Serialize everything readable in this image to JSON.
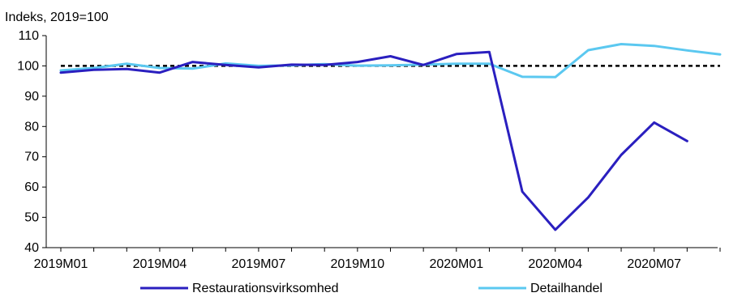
{
  "chart_data": {
    "type": "line",
    "ylabel": "Indeks, 2019=100",
    "ylim": [
      40,
      110
    ],
    "yticks": [
      40,
      50,
      60,
      70,
      80,
      90,
      100,
      110
    ],
    "x": [
      "2019M01",
      "2019M02",
      "2019M03",
      "2019M04",
      "2019M05",
      "2019M06",
      "2019M07",
      "2019M08",
      "2019M09",
      "2019M10",
      "2019M11",
      "2019M12",
      "2020M01",
      "2020M02",
      "2020M03",
      "2020M04",
      "2020M05",
      "2020M06",
      "2020M07",
      "2020M08",
      "2020M09"
    ],
    "xtick_labels": [
      "2019M01",
      "2019M04",
      "2019M07",
      "2019M10",
      "2020M01",
      "2020M04",
      "2020M07"
    ],
    "reference_line": {
      "value": 100,
      "style": "dashed",
      "color": "#000000"
    },
    "series": [
      {
        "name": "Restaurationsvirksomhed",
        "color": "#2a1fbf",
        "values": [
          97.8,
          98.7,
          99.0,
          97.8,
          101.3,
          100.3,
          99.5,
          100.4,
          100.3,
          101.3,
          103.2,
          100.3,
          103.9,
          104.6,
          58.5,
          45.9,
          56.6,
          70.6,
          81.3,
          75.2,
          null
        ]
      },
      {
        "name": "Detailhandel",
        "color": "#5bc8f0",
        "values": [
          98.5,
          99.3,
          100.7,
          99.3,
          99.1,
          100.8,
          100.0,
          100.2,
          100.6,
          100.1,
          100.2,
          100.4,
          100.7,
          100.7,
          96.4,
          96.3,
          105.2,
          107.2,
          106.6,
          105.1,
          103.8
        ]
      }
    ],
    "legend_position": "bottom",
    "grid": false
  }
}
